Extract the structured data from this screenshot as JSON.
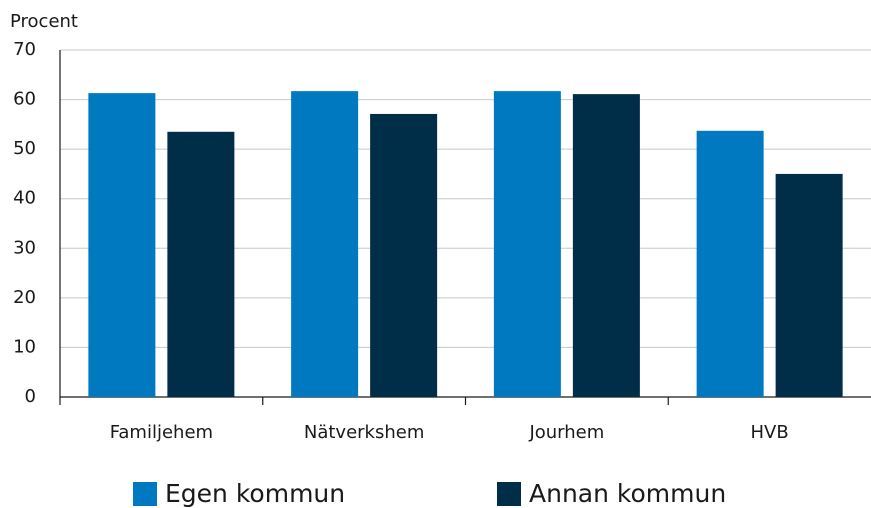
{
  "chart_data": {
    "type": "bar",
    "y_label": "Procent",
    "categories": [
      "Familjehem",
      "Nätverkshem",
      "Jourhem",
      "HVB"
    ],
    "series": [
      {
        "name": "Egen kommun",
        "color": "#0079c1",
        "values": [
          61.3,
          61.7,
          61.7,
          53.7
        ]
      },
      {
        "name": "Annan kommun",
        "color": "#002d47",
        "values": [
          53.5,
          57.1,
          61.1,
          45
        ]
      }
    ],
    "ylim": [
      0,
      70
    ],
    "yticks": [
      0,
      10,
      20,
      30,
      40,
      50,
      60,
      70
    ],
    "grid": true,
    "legend": "bottom"
  }
}
